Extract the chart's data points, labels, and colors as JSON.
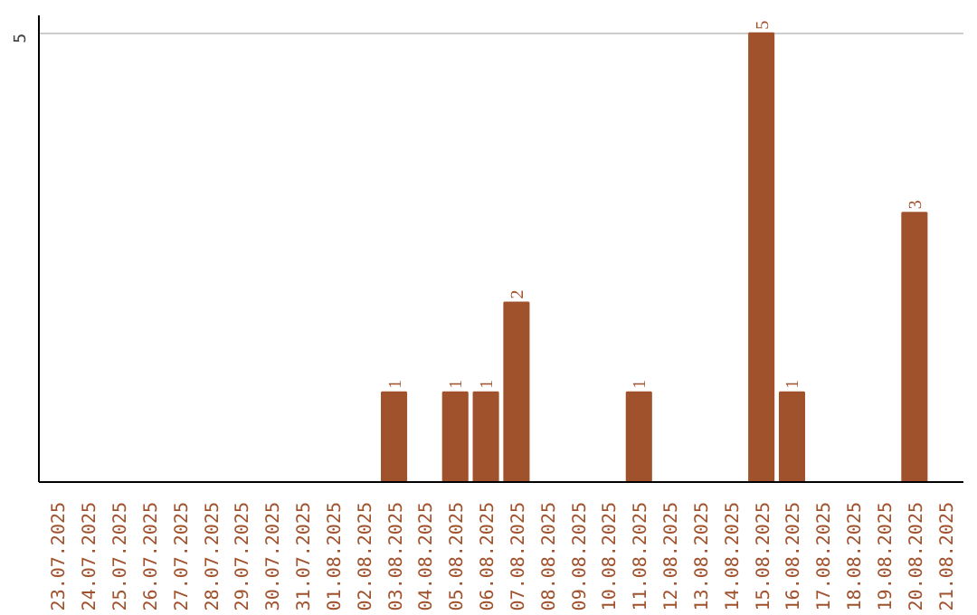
{
  "chart_data": {
    "type": "bar",
    "categories": [
      "23.07.2025",
      "24.07.2025",
      "25.07.2025",
      "26.07.2025",
      "27.07.2025",
      "28.07.2025",
      "29.07.2025",
      "30.07.2025",
      "31.07.2025",
      "01.08.2025",
      "02.08.2025",
      "03.08.2025",
      "04.08.2025",
      "05.08.2025",
      "06.08.2025",
      "07.08.2025",
      "08.08.2025",
      "09.08.2025",
      "10.08.2025",
      "11.08.2025",
      "12.08.2025",
      "13.08.2025",
      "14.08.2025",
      "15.08.2025",
      "16.08.2025",
      "17.08.2025",
      "18.08.2025",
      "19.08.2025",
      "20.08.2025",
      "21.08.2025"
    ],
    "values": [
      0,
      0,
      0,
      0,
      0,
      0,
      0,
      0,
      0,
      0,
      0,
      1,
      0,
      1,
      1,
      2,
      0,
      0,
      0,
      1,
      0,
      0,
      0,
      5,
      1,
      0,
      0,
      0,
      3,
      0
    ],
    "value_labels": [
      null,
      null,
      null,
      null,
      null,
      null,
      null,
      null,
      null,
      null,
      null,
      "1",
      null,
      "1",
      "1",
      "2",
      null,
      null,
      null,
      "1",
      null,
      null,
      null,
      "5",
      "1",
      null,
      null,
      null,
      "3",
      null
    ],
    "color": "#a0522d",
    "ylim": [
      0,
      5.2
    ],
    "yticks": [
      5
    ],
    "grid": "y"
  }
}
